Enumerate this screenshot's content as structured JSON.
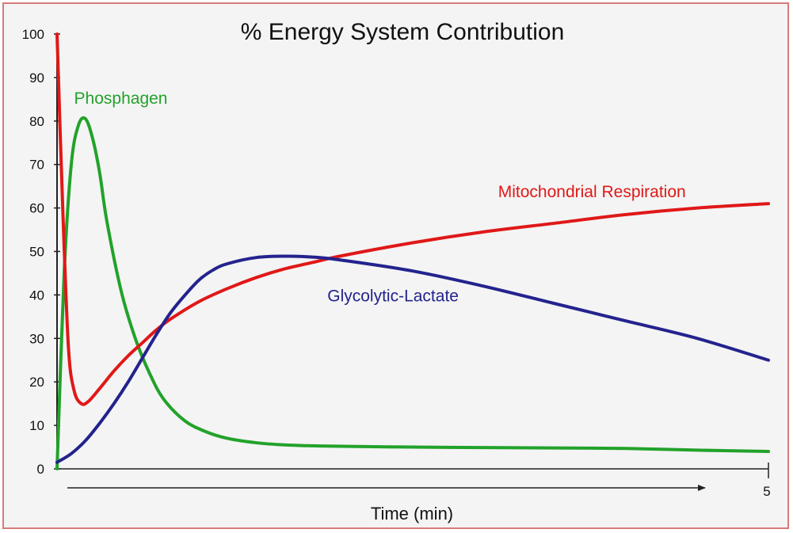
{
  "chart_data": {
    "type": "line",
    "title": "% Energy System Contribution",
    "xlabel": "Time (min)",
    "ylabel": "",
    "xlim": [
      0,
      5
    ],
    "ylim": [
      0,
      100
    ],
    "y_ticks": [
      "0",
      "10",
      "20",
      "30",
      "40",
      "50",
      "60",
      "70",
      "80",
      "90",
      "100"
    ],
    "x_ticks": [
      "5"
    ],
    "grid": false,
    "legend": "labels-on-chart",
    "series": [
      {
        "name": "Phosphagen",
        "color": "#22a22a",
        "x": [
          0,
          0.05,
          0.1,
          0.15,
          0.2,
          0.25,
          0.3,
          0.35,
          0.45,
          0.55,
          0.65,
          0.75,
          0.9,
          1.05,
          1.2,
          1.4,
          1.6,
          1.8,
          2.0,
          2.5,
          3.0,
          3.5,
          4.0,
          4.5,
          5.0
        ],
        "values": [
          0,
          45,
          70,
          79,
          80.5,
          76,
          68,
          57,
          41,
          30,
          22,
          16,
          11,
          8.5,
          7,
          6,
          5.5,
          5.3,
          5.2,
          5,
          4.9,
          4.8,
          4.7,
          4.3,
          4
        ]
      },
      {
        "name": "Mitochondrial Respiration",
        "color": "#e01818",
        "x": [
          0,
          0.04,
          0.08,
          0.12,
          0.17,
          0.22,
          0.3,
          0.4,
          0.5,
          0.6,
          0.7,
          0.8,
          1.0,
          1.2,
          1.4,
          1.6,
          1.8,
          2.0,
          2.5,
          3.0,
          3.5,
          4.0,
          4.5,
          5.0
        ],
        "values": [
          100,
          60,
          28,
          18,
          15,
          15.5,
          18.5,
          22.5,
          26,
          29,
          32,
          34.5,
          38.5,
          41.5,
          44,
          46,
          47.5,
          49,
          52,
          54.5,
          56.5,
          58.5,
          60,
          61
        ]
      },
      {
        "name": "Glycolytic-Lactate",
        "color": "#23238e",
        "x": [
          0,
          0.1,
          0.2,
          0.3,
          0.4,
          0.5,
          0.6,
          0.7,
          0.8,
          0.9,
          1.0,
          1.1,
          1.2,
          1.4,
          1.6,
          1.8,
          2.0,
          2.5,
          3.0,
          3.5,
          4.0,
          4.5,
          5.0
        ],
        "values": [
          1.5,
          3.5,
          6.5,
          10.5,
          15,
          20,
          25.5,
          31,
          36,
          40,
          43.5,
          45.8,
          47.2,
          48.6,
          48.9,
          48.7,
          48,
          45.5,
          42,
          38,
          34,
          30,
          25
        ]
      }
    ],
    "annotations": [
      {
        "text": "Phosphagen",
        "x": 0.12,
        "y": 84,
        "color": "#22a22a"
      },
      {
        "text": "Mitochondrial Respiration",
        "x": 3.1,
        "y": 62.5,
        "color": "#e01818"
      },
      {
        "text": "Glycolytic-Lactate",
        "x": 1.9,
        "y": 38.5,
        "color": "#23238e"
      }
    ]
  }
}
